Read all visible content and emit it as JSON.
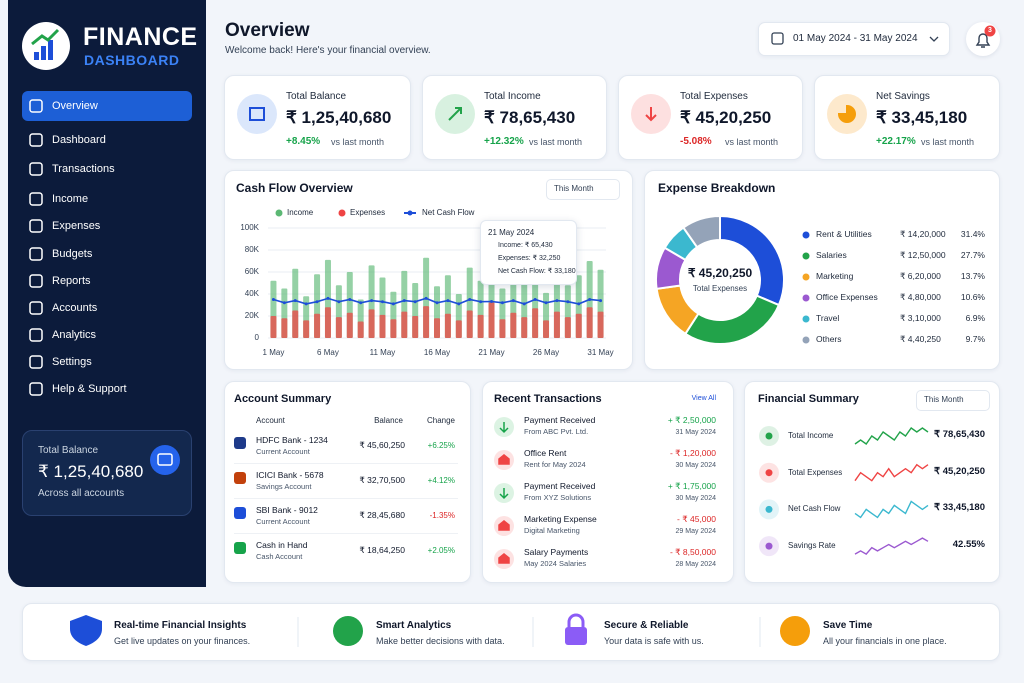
{
  "sidebar": {
    "brand": "FINANCE",
    "brand_sub": "DASHBOARD",
    "nav": [
      "Overview",
      "Dashboard",
      "Transactions",
      "Income",
      "Expenses",
      "Budgets",
      "Reports",
      "Accounts",
      "Analytics",
      "Settings",
      "Help & Support"
    ],
    "balance": {
      "label": "Total Balance",
      "value": "₹ 1,25,40,680",
      "note": "Across all accounts"
    }
  },
  "header": {
    "title": "Overview",
    "subtitle": "Welcome back! Here's your financial overview.",
    "date_range": "01 May 2024 - 31 May 2024",
    "notifications": "3"
  },
  "kpis": [
    {
      "label": "Total Balance",
      "value": "₹ 1,25,40,680",
      "change": "+8.45%",
      "note": "vs last month"
    },
    {
      "label": "Total Income",
      "value": "₹ 78,65,430",
      "change": "+12.32%",
      "note": "vs last month"
    },
    {
      "label": "Total Expenses",
      "value": "₹ 45,20,250",
      "change": "-5.08%",
      "note": "vs last month"
    },
    {
      "label": "Net Savings",
      "value": "₹ 33,45,180",
      "change": "+22.17%",
      "note": "vs last month"
    }
  ],
  "cash_flow_chart": {
    "type": "bar",
    "title": "Cash Flow Overview",
    "period": "This Month",
    "categories": [
      "1 May",
      null,
      null,
      null,
      null,
      "6 May",
      null,
      null,
      null,
      null,
      "11 May",
      null,
      null,
      null,
      null,
      "16 May",
      null,
      null,
      null,
      null,
      "21 May",
      null,
      null,
      null,
      null,
      "26 May",
      null,
      null,
      null,
      null,
      "31 May"
    ],
    "series": [
      {
        "name": "Income",
        "color": "#5cb874",
        "values": [
          52000,
          45000,
          63000,
          38000,
          58000,
          71000,
          48000,
          60000,
          35000,
          66000,
          55000,
          42000,
          61000,
          50000,
          73000,
          47000,
          57000,
          40000,
          64000,
          52000,
          65430,
          45000,
          58000,
          50000,
          68000,
          41000,
          62000,
          48000,
          57000,
          70000,
          62000
        ]
      },
      {
        "name": "Expenses",
        "color": "#ef4444",
        "values": [
          20000,
          18000,
          25000,
          16000,
          22000,
          28000,
          19000,
          23000,
          15000,
          26000,
          21000,
          17000,
          24000,
          20000,
          29000,
          18000,
          22000,
          16000,
          25000,
          21000,
          32250,
          17000,
          23000,
          19000,
          27000,
          16000,
          24000,
          19000,
          22000,
          28000,
          24000
        ]
      },
      {
        "name": "Net Cash Flow",
        "type": "line",
        "color": "#1d4ed8",
        "values": [
          35000,
          32000,
          34000,
          31000,
          33000,
          36000,
          33000,
          35000,
          32000,
          34000,
          33000,
          31000,
          34000,
          33000,
          36000,
          32000,
          34000,
          31000,
          35000,
          33000,
          33180,
          32000,
          34000,
          31000,
          35000,
          32000,
          34000,
          33000,
          31000,
          35000,
          34000
        ]
      }
    ],
    "ylim": [
      0,
      100000
    ],
    "yticks": [
      0,
      {
        "value": 20000,
        "label": "20K"
      },
      {
        "value": 40000,
        "label": "40K"
      },
      {
        "value": 60000,
        "label": "60K"
      },
      {
        "value": 80000,
        "label": "80K"
      },
      {
        "value": 100000,
        "label": "100K"
      }
    ],
    "grid": true,
    "tooltip": {
      "title": "21 May 2024",
      "lines": [
        "Income: ₹ 65,430",
        "Expenses: ₹ 32,250",
        "Net Cash Flow: ₹ 33,180"
      ]
    }
  },
  "expense_chart": {
    "type": "donut",
    "title": "Expense Breakdown",
    "center_value": "₹ 45,20,250",
    "center_label": "Total Expenses",
    "categories": [
      "Rent & Utilities",
      "Salaries",
      "Marketing",
      "Office Expenses",
      "Travel",
      "Others"
    ],
    "amounts": [
      "₹ 14,20,000",
      "₹ 12,50,000",
      "₹ 6,20,000",
      "₹ 4,80,000",
      "₹ 3,10,000",
      "₹ 4,40,250"
    ],
    "values": [
      31.4,
      27.7,
      13.7,
      10.6,
      6.9,
      9.7
    ],
    "value_labels": [
      "31.4%",
      "27.7%",
      "13.7%",
      "10.6%",
      "6.9%",
      "9.7%"
    ],
    "colors": [
      "#1d4ed8",
      "#22a34a",
      "#f5a524",
      "#9b59d0",
      "#3bb8cf",
      "#94a3b8"
    ]
  },
  "account_summary": {
    "title": "Account Summary",
    "columns": [
      "Account",
      "Balance",
      "Change"
    ],
    "rows": [
      {
        "name": "HDFC Bank - 1234",
        "type": "Current Account",
        "balance": "₹ 45,60,250",
        "change": "+6.25%"
      },
      {
        "name": "ICICI Bank - 5678",
        "type": "Savings Account",
        "balance": "₹ 32,70,500",
        "change": "+4.12%"
      },
      {
        "name": "SBI Bank - 9012",
        "type": "Current Account",
        "balance": "₹ 28,45,680",
        "change": "-1.35%"
      },
      {
        "name": "Cash in Hand",
        "type": "Cash Account",
        "balance": "₹ 18,64,250",
        "change": "+2.05%"
      }
    ]
  },
  "transactions": {
    "title": "Recent Transactions",
    "action": "View All",
    "rows": [
      {
        "title": "Payment Received",
        "sub": "From ABC Pvt. Ltd.",
        "amount": "+ ₹ 2,50,000",
        "date": "31 May 2024"
      },
      {
        "title": "Office Rent",
        "sub": "Rent for May 2024",
        "amount": "- ₹ 1,20,000",
        "date": "30 May 2024"
      },
      {
        "title": "Payment Received",
        "sub": "From XYZ Solutions",
        "amount": "+ ₹ 1,75,000",
        "date": "30 May 2024"
      },
      {
        "title": "Marketing Expense",
        "sub": "Digital Marketing",
        "amount": "- ₹ 45,000",
        "date": "29 May 2024"
      },
      {
        "title": "Salary Payments",
        "sub": "May 2024 Salaries",
        "amount": "- ₹ 8,50,000",
        "date": "28 May 2024"
      }
    ]
  },
  "financial_summary": {
    "title": "Financial Summary",
    "period": "This Month",
    "rows": [
      {
        "label": "Total Income",
        "value": "₹ 78,65,430",
        "color": "#22a34a",
        "trend": [
          4,
          5,
          4,
          6,
          5,
          7,
          6,
          5,
          7,
          6,
          8,
          7,
          8,
          7
        ]
      },
      {
        "label": "Total Expenses",
        "value": "₹ 45,20,250",
        "color": "#ef4444",
        "trend": [
          4,
          6,
          5,
          4,
          6,
          5,
          7,
          5,
          6,
          7,
          6,
          8,
          7,
          8
        ]
      },
      {
        "label": "Net Cash Flow",
        "value": "₹ 33,45,180",
        "color": "#3bb8cf",
        "trend": [
          5,
          4,
          6,
          5,
          4,
          6,
          5,
          7,
          6,
          5,
          8,
          7,
          6,
          7
        ]
      },
      {
        "label": "Savings Rate",
        "value": "42.55%",
        "color": "#9b59d0",
        "trend": [
          3,
          4,
          3,
          5,
          4,
          5,
          6,
          5,
          6,
          7,
          6,
          7,
          8,
          7
        ]
      }
    ]
  },
  "features": [
    {
      "title": "Real-time Financial Insights",
      "text": "Get live updates on your finances."
    },
    {
      "title": "Smart Analytics",
      "text": "Make better decisions with data."
    },
    {
      "title": "Secure & Reliable",
      "text": "Your data is safe with us."
    },
    {
      "title": "Save Time",
      "text": "All your financials in one place."
    }
  ]
}
